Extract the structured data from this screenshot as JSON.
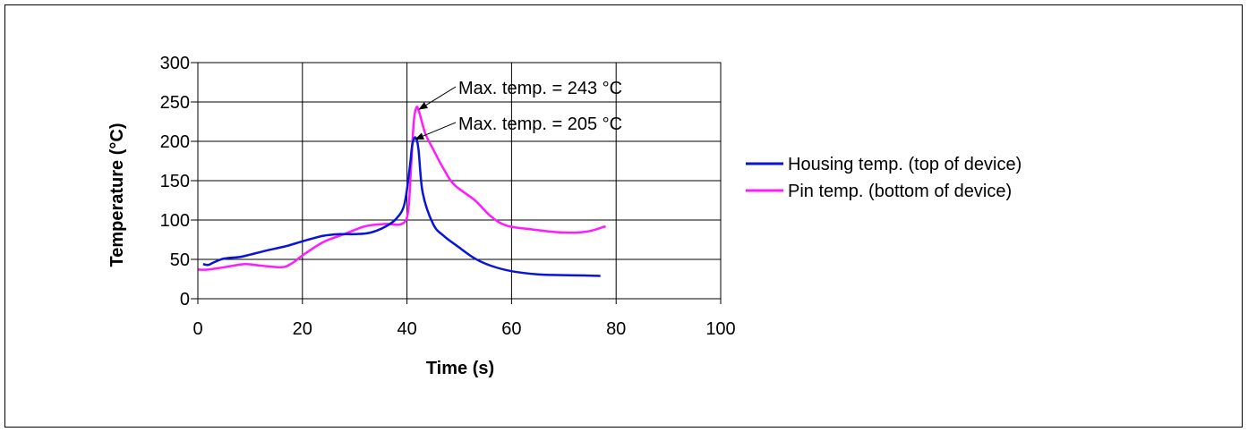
{
  "chart_data": {
    "type": "line",
    "xlabel": "Time (s)",
    "ylabel": "Temperature (°C)",
    "xlim": [
      0,
      100
    ],
    "ylim": [
      0,
      300
    ],
    "xticks": [
      0,
      20,
      40,
      60,
      80,
      100
    ],
    "yticks": [
      0,
      50,
      100,
      150,
      200,
      250,
      300
    ],
    "grid": true,
    "legend_position": "right",
    "series": [
      {
        "name": "Housing temp. (top of device)",
        "color": "#0a14d8",
        "x": [
          1,
          2,
          3,
          5,
          8,
          10,
          13,
          17,
          20,
          24,
          27,
          30,
          33,
          36,
          38,
          39.5,
          40.5,
          41,
          41.6,
          42.2,
          43,
          45,
          47,
          50,
          53,
          56,
          60,
          65,
          70,
          74,
          77
        ],
        "y": [
          44,
          43,
          46,
          51,
          53,
          56,
          61,
          67,
          73,
          80,
          82,
          82,
          84,
          92,
          102,
          120,
          165,
          195,
          205,
          190,
          135,
          95,
          80,
          65,
          51,
          42,
          35,
          31,
          30,
          29.5,
          29
        ]
      },
      {
        "name": "Pin temp. (bottom of device)",
        "color": "#ff1aff",
        "x": [
          0,
          2,
          5,
          9,
          12,
          16,
          18,
          20,
          24,
          28,
          32,
          36,
          39,
          40.2,
          40.8,
          41.3,
          41.8,
          42.3,
          43.5,
          45,
          47,
          49,
          53,
          56,
          59,
          64,
          68,
          72,
          75,
          78
        ],
        "y": [
          37,
          37,
          40,
          44,
          42,
          40,
          45,
          55,
          72,
          82,
          92,
          95,
          95,
          110,
          170,
          225,
          243,
          238,
          210,
          190,
          165,
          145,
          125,
          105,
          93,
          88,
          85,
          84,
          86,
          92
        ]
      }
    ],
    "annotations": [
      {
        "text": "Max. temp. = 243 °C",
        "x": 42,
        "y": 243
      },
      {
        "text": "Max. temp. = 205 °C",
        "x": 41.3,
        "y": 205
      }
    ]
  }
}
